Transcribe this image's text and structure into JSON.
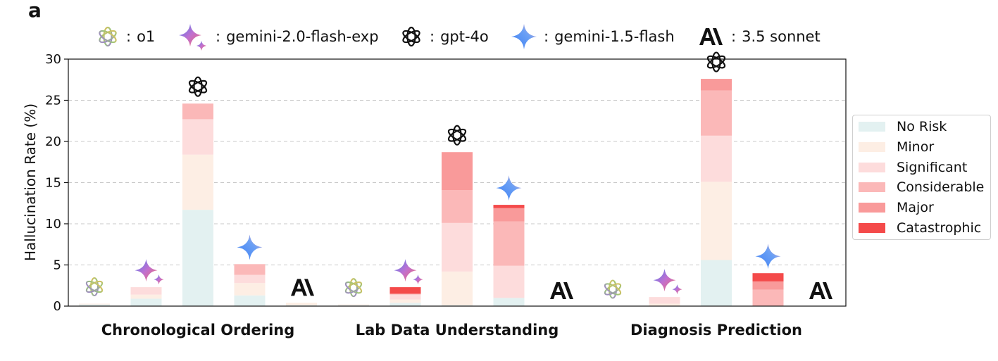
{
  "panel_label": "a",
  "model_legend": [
    {
      "icon": "o1-icon",
      "sep": ":",
      "label": "o1"
    },
    {
      "icon": "gemini-2.0-flash-exp-icon",
      "sep": ":",
      "label": "gemini-2.0-flash-exp"
    },
    {
      "icon": "gpt-4o-icon",
      "sep": ":",
      "label": "gpt-4o"
    },
    {
      "icon": "gemini-1.5-flash-icon",
      "sep": ":",
      "label": "gemini-1.5-flash"
    },
    {
      "icon": "anthropic-icon",
      "sep": ":",
      "label": "3.5 sonnet"
    }
  ],
  "chart_data": {
    "type": "bar",
    "stacked": true,
    "ylabel": "Hallucination Rate (%)",
    "ylim": [
      0,
      30
    ],
    "yticks": [
      0,
      5,
      10,
      15,
      20,
      25,
      30
    ],
    "grid": "horizontal dashed",
    "legend_position": "right",
    "groups": [
      "Chronological Ordering",
      "Lab Data Understanding",
      "Diagnosis Prediction"
    ],
    "models": [
      "o1",
      "gemini-2.0-flash-exp",
      "gpt-4o",
      "gemini-1.5-flash",
      "3.5 sonnet"
    ],
    "series": [
      {
        "name": "No Risk",
        "color": "#e3f1f1",
        "values": [
          [
            0.2,
            0.9,
            11.7,
            1.3,
            0.1
          ],
          [
            0.1,
            0.4,
            0.1,
            1.0,
            0.0
          ],
          [
            0.0,
            0.0,
            5.6,
            0.0,
            0.0
          ]
        ]
      },
      {
        "name": "Minor",
        "color": "#fdeee4",
        "values": [
          [
            0.1,
            0.5,
            6.7,
            1.5,
            0.3
          ],
          [
            0.1,
            0.4,
            4.1,
            0.0,
            0.0
          ],
          [
            0.0,
            0.3,
            9.5,
            0.0,
            0.0
          ]
        ]
      },
      {
        "name": "Significant",
        "color": "#fddcdc",
        "values": [
          [
            0.0,
            0.9,
            4.3,
            1.0,
            0.0
          ],
          [
            0.0,
            0.6,
            5.9,
            3.9,
            0.0
          ],
          [
            0.0,
            0.8,
            5.6,
            0.0,
            0.0
          ]
        ]
      },
      {
        "name": "Considerable",
        "color": "#fbb8b8",
        "values": [
          [
            0.0,
            0.0,
            1.9,
            1.3,
            0.0
          ],
          [
            0.0,
            0.1,
            4.0,
            5.4,
            0.0
          ],
          [
            0.0,
            0.0,
            5.5,
            2.0,
            0.0
          ]
        ]
      },
      {
        "name": "Major",
        "color": "#f99a9a",
        "values": [
          [
            0.0,
            0.0,
            0.0,
            0.0,
            0.0
          ],
          [
            0.0,
            0.0,
            4.6,
            1.6,
            0.0
          ],
          [
            0.0,
            0.0,
            1.4,
            1.0,
            0.0
          ]
        ]
      },
      {
        "name": "Catastrophic",
        "color": "#f44a4a",
        "values": [
          [
            0.0,
            0.0,
            0.0,
            0.0,
            0.0
          ],
          [
            0.0,
            0.8,
            0.0,
            0.4,
            0.0
          ],
          [
            0.0,
            0.0,
            0.0,
            1.0,
            0.0
          ]
        ]
      }
    ]
  }
}
